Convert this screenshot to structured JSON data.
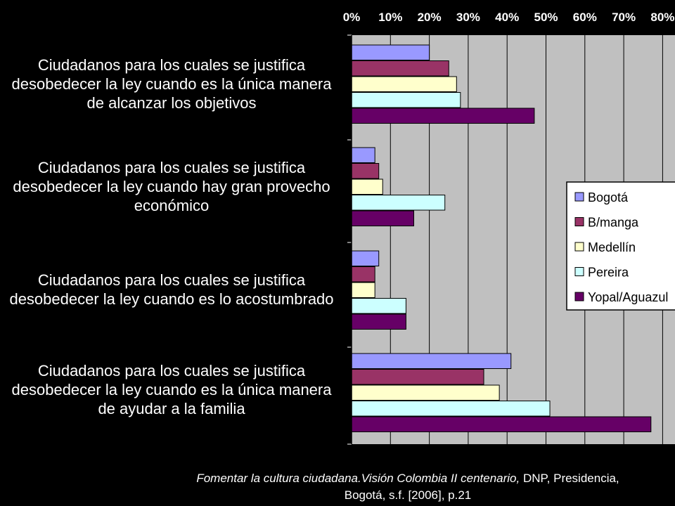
{
  "chart_data": {
    "type": "bar",
    "orientation": "horizontal",
    "xlim": [
      0,
      80
    ],
    "tick_labels": [
      "0%",
      "10%",
      "20%",
      "30%",
      "40%",
      "50%",
      "60%",
      "70%",
      "80%"
    ],
    "tick_values": [
      0,
      10,
      20,
      30,
      40,
      50,
      60,
      70,
      80
    ],
    "grid": true,
    "legend_position": "right",
    "categories": [
      "Ciudadanos para los cuales se justifica desobedecer la ley cuando es la única manera de alcanzar los objetivos",
      "Ciudadanos para los cuales se justifica desobedecer la ley cuando hay gran provecho económico",
      "Ciudadanos para los cuales se justifica desobedecer la ley cuando es lo acostumbrado",
      "Ciudadanos para los cuales se justifica desobedecer la ley cuando es la única manera de ayudar a la familia"
    ],
    "series": [
      {
        "name": "Bogotá",
        "color": "#9999ff",
        "values": [
          20,
          6,
          7,
          41
        ]
      },
      {
        "name": "B/manga",
        "color": "#993366",
        "values": [
          25,
          7,
          6,
          34
        ]
      },
      {
        "name": "Medellín",
        "color": "#ffffcc",
        "values": [
          27,
          8,
          6,
          38
        ]
      },
      {
        "name": "Pereira",
        "color": "#ccffff",
        "values": [
          28,
          24,
          14,
          51
        ]
      },
      {
        "name": "Yopal/Aguazul",
        "color": "#660066",
        "values": [
          47,
          16,
          14,
          77
        ]
      }
    ]
  },
  "labels": {
    "cat0": [
      "Ciudadanos para los cuales se justifica",
      "desobedecer la ley cuando es la única manera",
      "de alcanzar los objetivos"
    ],
    "cat1": [
      "Ciudadanos para los cuales se justifica",
      "desobedecer la ley cuando hay gran provecho",
      "económico"
    ],
    "cat2": [
      "Ciudadanos para los cuales se justifica",
      "desobedecer la ley cuando es lo acostumbrado"
    ],
    "cat3": [
      "Ciudadanos para los cuales se justifica",
      "desobedecer la ley cuando es la única manera",
      "de ayudar a la familia"
    ]
  },
  "footer": {
    "italic_part": "Fomentar la cultura ciudadana.Visión Colombia II centenario,",
    "rest_part": " DNP, Presidencia,",
    "line2": "Bogotá, s.f. [2006], p.21"
  }
}
